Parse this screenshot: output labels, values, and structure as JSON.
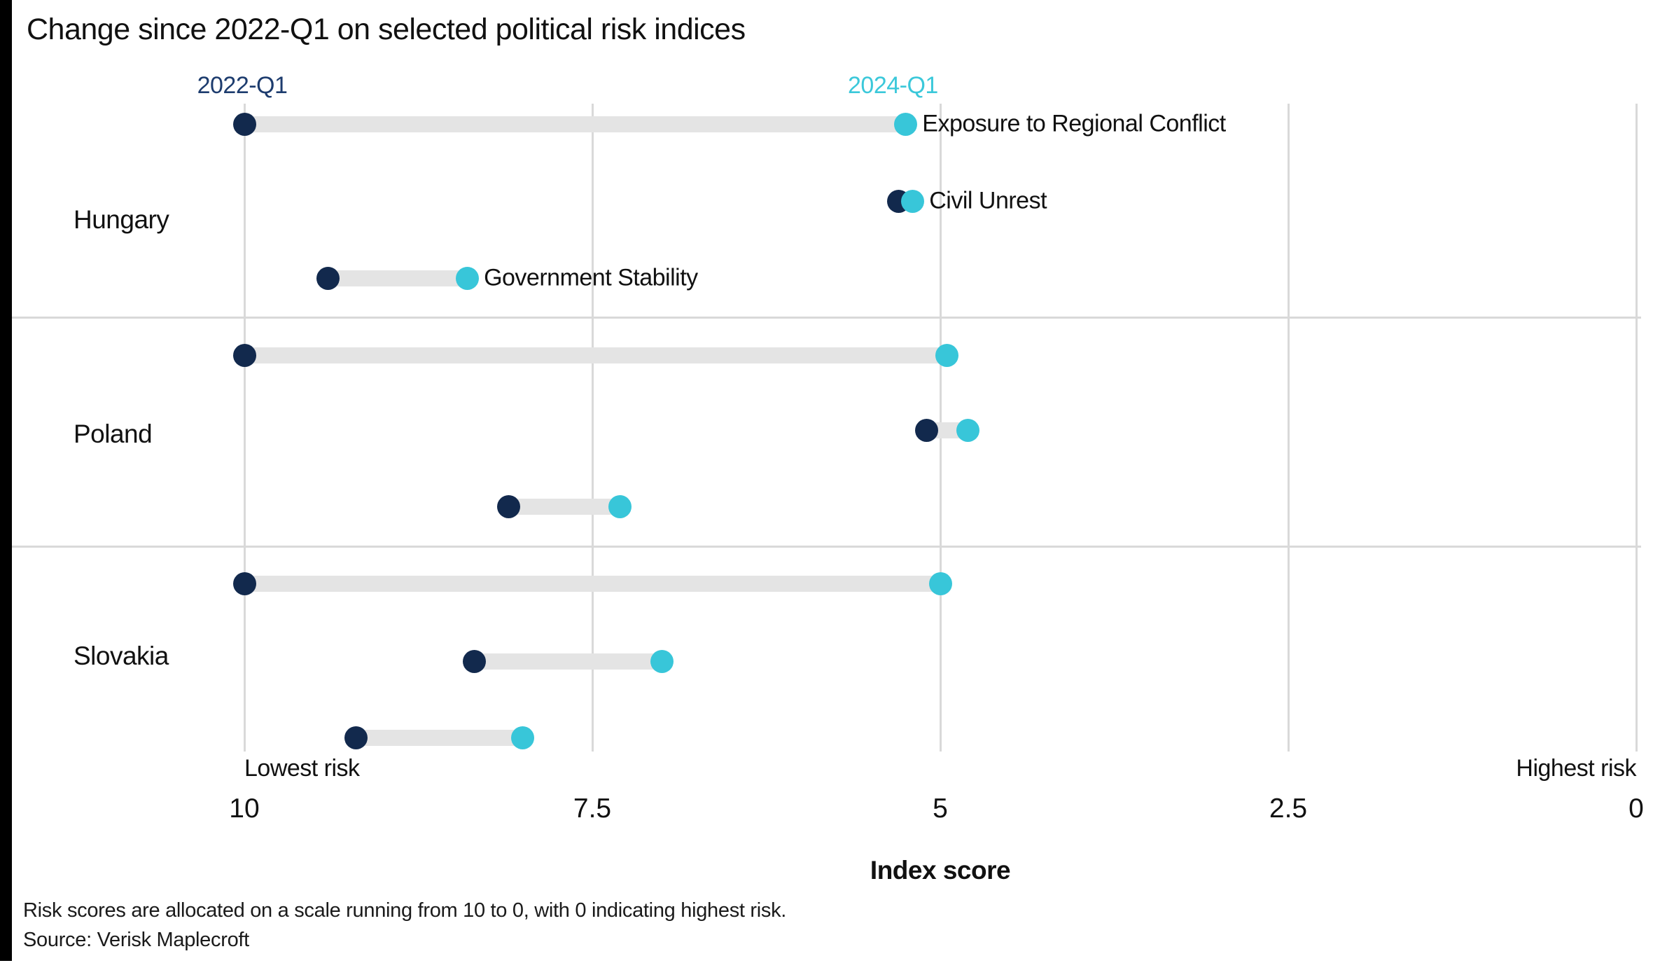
{
  "title": "Change since 2022-Q1 on selected political risk indices",
  "legend": {
    "series_2022_label": "2022-Q1",
    "series_2024_label": "2024-Q1"
  },
  "colors": {
    "navy_2022": "#12294D",
    "cyan_2024": "#38C6D9",
    "navy_label_text": "#1D3C6E",
    "cyan_label_text": "#3BC8DA",
    "track": "#E4E4E4",
    "gridline": "#D9D9D9"
  },
  "chart_data": {
    "type": "scatter",
    "variant": "dumbbell",
    "series": [
      "2022-Q1",
      "2024-Q1"
    ],
    "axis": {
      "label": "Index score",
      "ticks": [
        10,
        7.5,
        5,
        2.5,
        0
      ],
      "range": [
        10,
        0
      ],
      "left_edge_label": "Lowest risk",
      "right_edge_label": "Highest risk",
      "grid": true
    },
    "groups": [
      {
        "country": "Hungary",
        "rows": [
          {
            "index": "Exposure to Regional Conflict",
            "value_2022": 10.0,
            "value_2024": 5.25,
            "show_index_label": true
          },
          {
            "index": "Civil Unrest",
            "value_2022": 5.3,
            "value_2024": 5.2,
            "show_index_label": true
          },
          {
            "index": "Government Stability",
            "value_2022": 9.4,
            "value_2024": 8.4,
            "show_index_label": true
          }
        ]
      },
      {
        "country": "Poland",
        "rows": [
          {
            "index": "Exposure to Regional Conflict",
            "value_2022": 10.0,
            "value_2024": 4.95,
            "show_index_label": false
          },
          {
            "index": "Civil Unrest",
            "value_2022": 5.1,
            "value_2024": 4.8,
            "show_index_label": false
          },
          {
            "index": "Government Stability",
            "value_2022": 8.1,
            "value_2024": 7.3,
            "show_index_label": false
          }
        ]
      },
      {
        "country": "Slovakia",
        "rows": [
          {
            "index": "Exposure to Regional Conflict",
            "value_2022": 10.0,
            "value_2024": 5.0,
            "show_index_label": false
          },
          {
            "index": "Civil Unrest",
            "value_2022": 8.35,
            "value_2024": 7.0,
            "show_index_label": false
          },
          {
            "index": "Government Stability",
            "value_2022": 9.2,
            "value_2024": 8.0,
            "show_index_label": false
          }
        ]
      }
    ]
  },
  "footnotes": [
    "Risk scores are allocated on a scale running from 10 to 0, with 0 indicating highest risk.",
    "Source: Verisk Maplecroft"
  ]
}
